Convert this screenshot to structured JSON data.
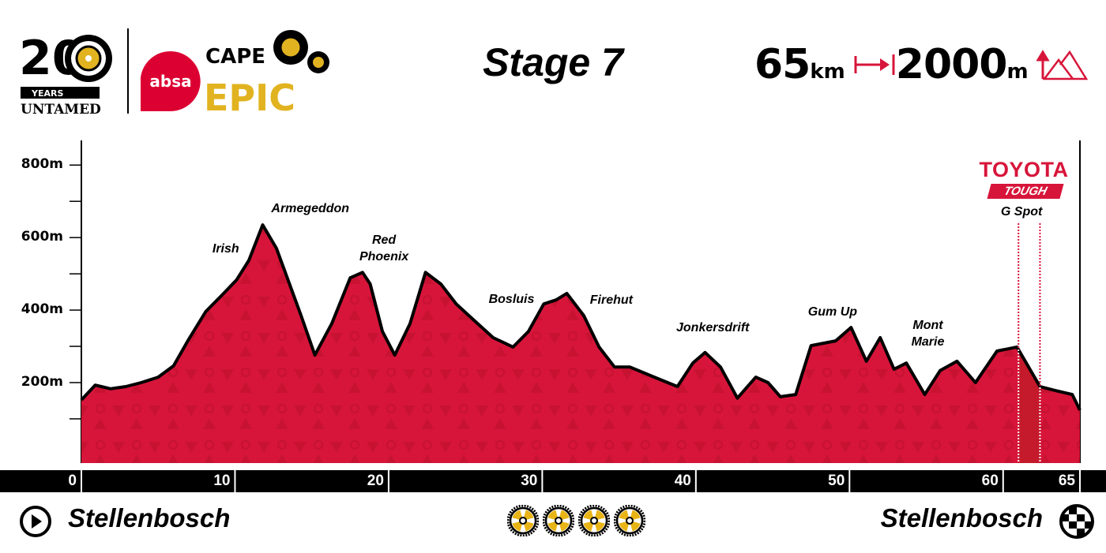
{
  "logos": {
    "anniversary": {
      "number": "20",
      "years": "YEARS",
      "tagline": "UNTAMED"
    },
    "sponsor": "absa",
    "event": {
      "line1": "CAPE",
      "line2": "EPIC"
    }
  },
  "header": {
    "stage_title": "Stage 7",
    "distance_value": "65",
    "distance_unit": "km",
    "distance_icon": "distance-arrow-icon",
    "climb_value": "2000",
    "climb_unit": "m",
    "climb_icon": "mountain-climb-icon",
    "accent_color": "#d7153a"
  },
  "segment_sponsor": {
    "brand": "TOYOTA",
    "tag": "TOUGH"
  },
  "chart_data": {
    "type": "area",
    "xlabel": "",
    "ylabel": "",
    "xlim": [
      0,
      65
    ],
    "ylim": [
      -22,
      868
    ],
    "x_ticks": [
      "0",
      "10",
      "20",
      "30",
      "40",
      "50",
      "60",
      "65"
    ],
    "x_tick_values": [
      0,
      10,
      20,
      30,
      40,
      50,
      60,
      65
    ],
    "y_ticks": [
      "200m",
      "400m",
      "600m",
      "800m"
    ],
    "y_tick_values": [
      200,
      400,
      600,
      800
    ],
    "y_minor_ticks": [
      100,
      300,
      500,
      700
    ],
    "fill_color": "#d7153a",
    "line_color": "#000000",
    "grid": false,
    "profile": {
      "km": [
        0,
        0.9,
        1.9,
        2.9,
        3.9,
        5,
        6,
        7,
        8.1,
        9.1,
        10.1,
        10.9,
        11.8,
        12.7,
        14.3,
        15.2,
        16.3,
        17.5,
        18.3,
        18.8,
        19.6,
        20.4,
        21.4,
        22.4,
        23.4,
        24.4,
        25.5,
        26.8,
        28.1,
        29.1,
        30.1,
        30.9,
        31.6,
        32.7,
        33.7,
        34.7,
        35.7,
        37.3,
        38.8,
        39.8,
        40.6,
        41.6,
        42.7,
        43.9,
        44.7,
        45.5,
        46.5,
        47.5,
        49.1,
        50.1,
        51.1,
        52.0,
        52.9,
        53.7,
        54.9,
        55.9,
        57.0,
        58.2,
        59.6,
        60.9,
        62.4,
        63.4,
        64.5,
        65
      ],
      "elevation_m": [
        152,
        193,
        183,
        189,
        200,
        215,
        246,
        320,
        396,
        439,
        483,
        537,
        635,
        570,
        385,
        276,
        363,
        489,
        504,
        472,
        341,
        276,
        363,
        504,
        472,
        417,
        374,
        324,
        298,
        341,
        417,
        428,
        446,
        385,
        298,
        243,
        243,
        215,
        189,
        254,
        283,
        243,
        157,
        215,
        200,
        161,
        167,
        302,
        315,
        352,
        259,
        324,
        237,
        254,
        167,
        233,
        259,
        200,
        287,
        298,
        189,
        178,
        167,
        124
      ]
    },
    "annotations": [
      {
        "text": "Irish",
        "km": 9.4
      },
      {
        "text": "Armegeddon",
        "km": 14.9
      },
      {
        "text": "Red Phoenix",
        "km": 19.7
      },
      {
        "text": "Bosluis",
        "km": 28.0
      },
      {
        "text": "Firehut",
        "km": 34.5
      },
      {
        "text": "Jonkersdrift",
        "km": 41.1
      },
      {
        "text": "Gum Up",
        "km": 48.9
      },
      {
        "text": "Mont Marie",
        "km": 55.1
      },
      {
        "text": "G Spot",
        "km": 61.2
      }
    ],
    "highlight_segment": {
      "name": "G Spot",
      "km_start": 61.0,
      "km_end": 62.4
    }
  },
  "footer": {
    "start_location": "Stellenbosch",
    "start_icon": "play-circle-icon",
    "finish_location": "Stellenbosch",
    "finish_icon": "checkered-flag-icon",
    "difficulty_rating": 4,
    "difficulty_icon": "gear-icon"
  }
}
